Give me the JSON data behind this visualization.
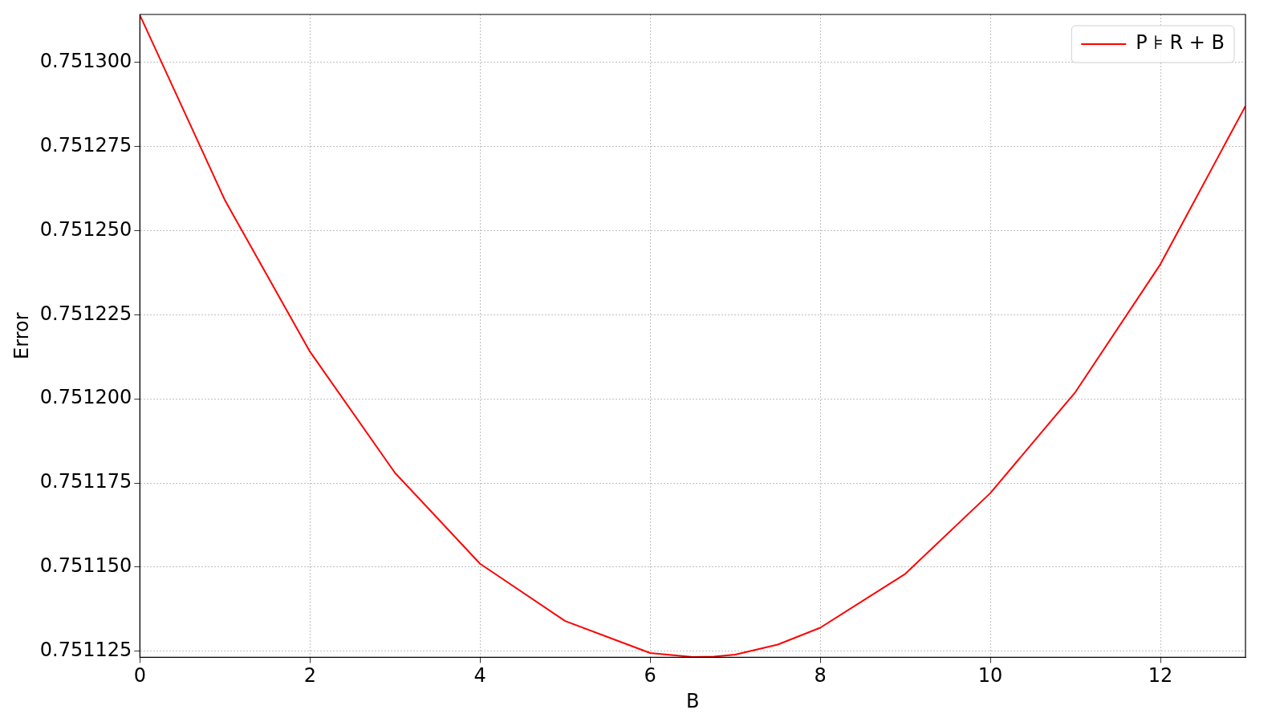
{
  "chart_data": {
    "type": "line",
    "xlabel": "B",
    "ylabel": "Error",
    "x": [
      0,
      1,
      2,
      3,
      4,
      5,
      6,
      6.5,
      6.75,
      7,
      7.5,
      8,
      9,
      10,
      11,
      12,
      13
    ],
    "series": [
      {
        "name": "P ⊧ R + B",
        "color": "#ff0000",
        "values": [
          0.751314,
          0.751259,
          0.751214,
          0.751178,
          0.751151,
          0.751134,
          0.7511245,
          0.7511233,
          0.7511234,
          0.751124,
          0.751127,
          0.751132,
          0.751148,
          0.751172,
          0.751202,
          0.75124,
          0.751287
        ]
      }
    ],
    "xlim": [
      0,
      13
    ],
    "xticks": [
      0,
      2,
      4,
      6,
      8,
      10,
      12
    ],
    "ylim": [
      0.7511232,
      0.7513142
    ],
    "yticks": [
      {
        "value": 0.751125,
        "label": "0.751125"
      },
      {
        "value": 0.75115,
        "label": "0.751150"
      },
      {
        "value": 0.751175,
        "label": "0.751175"
      },
      {
        "value": 0.7512,
        "label": "0.751200"
      },
      {
        "value": 0.751225,
        "label": "0.751225"
      },
      {
        "value": 0.75125,
        "label": "0.751250"
      },
      {
        "value": 0.751275,
        "label": "0.751275"
      },
      {
        "value": 0.7513,
        "label": "0.751300"
      }
    ],
    "grid": true,
    "legend": "top right",
    "marker": "none",
    "line_style": "solid"
  }
}
